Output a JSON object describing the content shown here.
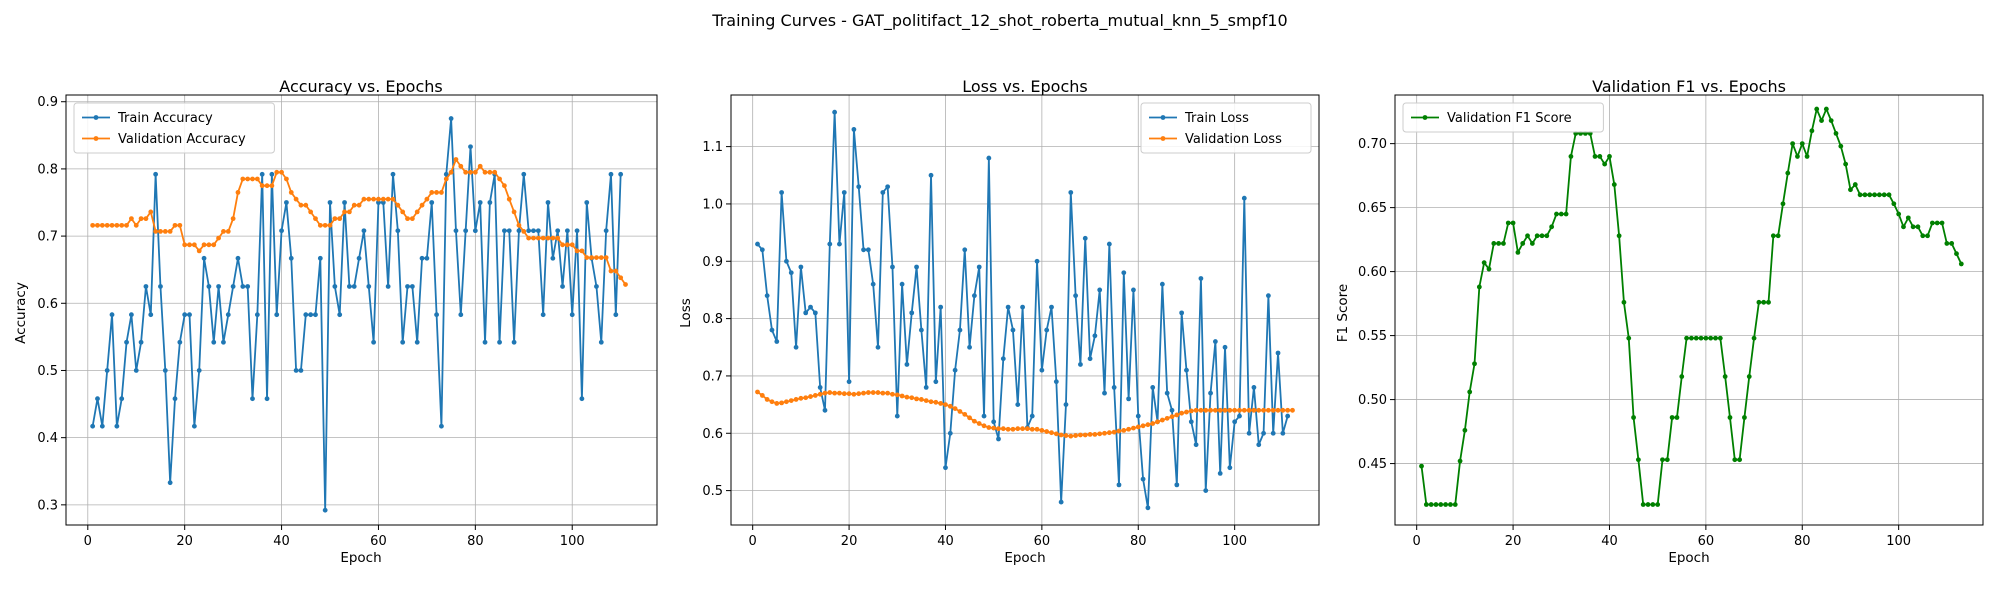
{
  "figure": {
    "title": "Training Curves - GAT_politifact_12_shot_roberta_mutual_knn_5_smpf10"
  },
  "colors": {
    "train": "#1f77b4",
    "validation": "#ff7f0e",
    "f1": "#008000",
    "grid": "#b0b0b0"
  },
  "chart_data": [
    {
      "type": "line",
      "title": "Accuracy vs. Epochs",
      "xlabel": "Epoch",
      "ylabel": "Accuracy",
      "xlim": [
        -4.5,
        117.5
      ],
      "ylim": [
        0.27,
        0.91
      ],
      "xticks": [
        0,
        20,
        40,
        60,
        80,
        100
      ],
      "yticks": [
        0.3,
        0.4,
        0.5,
        0.6,
        0.7,
        0.8,
        0.9
      ],
      "yticklabels": [
        "0.3",
        "0.4",
        "0.5",
        "0.6",
        "0.7",
        "0.8",
        "0.9"
      ],
      "grid": true,
      "legend": "upper left",
      "series": [
        {
          "name": "Train Accuracy",
          "color": "#1f77b4",
          "values": [
            0.417,
            0.458,
            0.417,
            0.5,
            0.583,
            0.417,
            0.458,
            0.542,
            0.583,
            0.5,
            0.542,
            0.625,
            0.583,
            0.792,
            0.625,
            0.5,
            0.333,
            0.458,
            0.542,
            0.583,
            0.583,
            0.417,
            0.5,
            0.667,
            0.625,
            0.542,
            0.625,
            0.542,
            0.583,
            0.625,
            0.667,
            0.625,
            0.625,
            0.458,
            0.583,
            0.792,
            0.458,
            0.792,
            0.583,
            0.708,
            0.75,
            0.667,
            0.5,
            0.5,
            0.583,
            0.583,
            0.583,
            0.667,
            0.292,
            0.75,
            0.625,
            0.583,
            0.75,
            0.625,
            0.625,
            0.667,
            0.708,
            0.625,
            0.542,
            0.75,
            0.75,
            0.625,
            0.792,
            0.708,
            0.542,
            0.625,
            0.625,
            0.542,
            0.667,
            0.667,
            0.75,
            0.583,
            0.417,
            0.792,
            0.875,
            0.708,
            0.583,
            0.708,
            0.833,
            0.708,
            0.75,
            0.542,
            0.75,
            0.792,
            0.542,
            0.708,
            0.708,
            0.542,
            0.708,
            0.792,
            0.708,
            0.708,
            0.708,
            0.583,
            0.75,
            0.667,
            0.708,
            0.625,
            0.708,
            0.583,
            0.708,
            0.458,
            0.75,
            0.667,
            0.625,
            0.542,
            0.708,
            0.792,
            0.583,
            0.792
          ]
        },
        {
          "name": "Validation Accuracy",
          "color": "#ff7f0e",
          "values": [
            0.716,
            0.716,
            0.716,
            0.716,
            0.716,
            0.716,
            0.716,
            0.716,
            0.726,
            0.716,
            0.726,
            0.726,
            0.736,
            0.707,
            0.707,
            0.707,
            0.707,
            0.716,
            0.716,
            0.687,
            0.687,
            0.687,
            0.678,
            0.687,
            0.687,
            0.687,
            0.697,
            0.707,
            0.707,
            0.726,
            0.765,
            0.785,
            0.785,
            0.785,
            0.785,
            0.775,
            0.775,
            0.775,
            0.795,
            0.795,
            0.785,
            0.765,
            0.755,
            0.746,
            0.746,
            0.736,
            0.726,
            0.716,
            0.716,
            0.716,
            0.726,
            0.726,
            0.736,
            0.736,
            0.746,
            0.746,
            0.755,
            0.755,
            0.755,
            0.755,
            0.755,
            0.755,
            0.755,
            0.746,
            0.736,
            0.726,
            0.726,
            0.736,
            0.746,
            0.755,
            0.765,
            0.765,
            0.765,
            0.785,
            0.795,
            0.814,
            0.804,
            0.795,
            0.795,
            0.795,
            0.804,
            0.795,
            0.795,
            0.795,
            0.785,
            0.775,
            0.755,
            0.736,
            0.716,
            0.707,
            0.697,
            0.697,
            0.697,
            0.697,
            0.697,
            0.697,
            0.697,
            0.687,
            0.687,
            0.687,
            0.678,
            0.678,
            0.668,
            0.668,
            0.668,
            0.668,
            0.668,
            0.648,
            0.648,
            0.638,
            0.628
          ]
        }
      ]
    },
    {
      "type": "line",
      "title": "Loss vs. Epochs",
      "xlabel": "Epoch",
      "ylabel": "Loss",
      "xlim": [
        -4.5,
        117.5
      ],
      "ylim": [
        0.44,
        1.19
      ],
      "xticks": [
        0,
        20,
        40,
        60,
        80,
        100
      ],
      "yticks": [
        0.5,
        0.6,
        0.7,
        0.8,
        0.9,
        1.0,
        1.1
      ],
      "yticklabels": [
        "0.5",
        "0.6",
        "0.7",
        "0.8",
        "0.9",
        "1.0",
        "1.1"
      ],
      "grid": true,
      "legend": "upper right",
      "series": [
        {
          "name": "Train Loss",
          "color": "#1f77b4",
          "values": [
            0.93,
            0.92,
            0.84,
            0.78,
            0.76,
            1.02,
            0.9,
            0.88,
            0.75,
            0.89,
            0.81,
            0.82,
            0.81,
            0.68,
            0.64,
            0.93,
            1.16,
            0.93,
            1.02,
            0.69,
            1.13,
            1.03,
            0.92,
            0.92,
            0.86,
            0.75,
            1.02,
            1.03,
            0.89,
            0.63,
            0.86,
            0.72,
            0.81,
            0.89,
            0.78,
            0.68,
            1.05,
            0.69,
            0.82,
            0.54,
            0.6,
            0.71,
            0.78,
            0.92,
            0.75,
            0.84,
            0.89,
            0.63,
            1.08,
            0.62,
            0.59,
            0.73,
            0.82,
            0.78,
            0.65,
            0.82,
            0.61,
            0.63,
            0.9,
            0.71,
            0.78,
            0.82,
            0.69,
            0.48,
            0.65,
            1.02,
            0.84,
            0.72,
            0.94,
            0.73,
            0.77,
            0.85,
            0.67,
            0.93,
            0.68,
            0.51,
            0.88,
            0.66,
            0.85,
            0.63,
            0.52,
            0.47,
            0.68,
            0.62,
            0.86,
            0.67,
            0.64,
            0.51,
            0.81,
            0.71,
            0.62,
            0.58,
            0.87,
            0.5,
            0.67,
            0.76,
            0.53,
            0.75,
            0.54,
            0.62,
            0.63,
            1.01,
            0.6,
            0.68,
            0.58,
            0.6,
            0.84,
            0.6,
            0.74,
            0.6,
            0.63
          ]
        },
        {
          "name": "Validation Loss",
          "color": "#ff7f0e",
          "values": [
            0.672,
            0.666,
            0.659,
            0.655,
            0.652,
            0.653,
            0.655,
            0.657,
            0.659,
            0.661,
            0.662,
            0.664,
            0.666,
            0.668,
            0.67,
            0.671,
            0.67,
            0.67,
            0.669,
            0.669,
            0.668,
            0.669,
            0.67,
            0.671,
            0.671,
            0.671,
            0.67,
            0.67,
            0.668,
            0.667,
            0.665,
            0.663,
            0.662,
            0.66,
            0.659,
            0.657,
            0.655,
            0.654,
            0.652,
            0.65,
            0.647,
            0.643,
            0.638,
            0.633,
            0.627,
            0.621,
            0.617,
            0.613,
            0.61,
            0.609,
            0.608,
            0.608,
            0.607,
            0.607,
            0.608,
            0.608,
            0.608,
            0.607,
            0.607,
            0.605,
            0.603,
            0.601,
            0.599,
            0.597,
            0.596,
            0.595,
            0.596,
            0.597,
            0.597,
            0.598,
            0.598,
            0.599,
            0.6,
            0.601,
            0.602,
            0.604,
            0.605,
            0.607,
            0.609,
            0.611,
            0.613,
            0.615,
            0.617,
            0.62,
            0.623,
            0.626,
            0.629,
            0.632,
            0.635,
            0.637,
            0.639,
            0.64,
            0.64,
            0.64,
            0.64,
            0.64,
            0.64,
            0.64,
            0.64,
            0.64,
            0.64,
            0.64,
            0.64,
            0.64,
            0.64,
            0.64,
            0.64,
            0.64,
            0.64,
            0.64,
            0.64,
            0.64
          ]
        }
      ]
    },
    {
      "type": "line",
      "title": "Validation F1 vs. Epochs",
      "xlabel": "Epoch",
      "ylabel": "F1 Score",
      "xlim": [
        -4.5,
        117.5
      ],
      "ylim": [
        0.402,
        0.738
      ],
      "xticks": [
        0,
        20,
        40,
        60,
        80,
        100
      ],
      "yticks": [
        0.45,
        0.5,
        0.55,
        0.6,
        0.65,
        0.7
      ],
      "yticklabels": [
        "0.45",
        "0.50",
        "0.55",
        "0.60",
        "0.65",
        "0.70"
      ],
      "grid": true,
      "legend": "upper left",
      "series": [
        {
          "name": "Validation F1 Score",
          "color": "#008000",
          "values": [
            0.448,
            0.418,
            0.418,
            0.418,
            0.418,
            0.418,
            0.418,
            0.418,
            0.452,
            0.476,
            0.506,
            0.528,
            0.588,
            0.607,
            0.602,
            0.622,
            0.622,
            0.622,
            0.638,
            0.638,
            0.615,
            0.622,
            0.628,
            0.622,
            0.628,
            0.628,
            0.628,
            0.635,
            0.645,
            0.645,
            0.645,
            0.69,
            0.708,
            0.708,
            0.708,
            0.708,
            0.69,
            0.69,
            0.684,
            0.69,
            0.668,
            0.628,
            0.576,
            0.548,
            0.486,
            0.453,
            0.418,
            0.418,
            0.418,
            0.418,
            0.453,
            0.453,
            0.486,
            0.486,
            0.518,
            0.548,
            0.548,
            0.548,
            0.548,
            0.548,
            0.548,
            0.548,
            0.548,
            0.518,
            0.486,
            0.453,
            0.453,
            0.486,
            0.518,
            0.548,
            0.576,
            0.576,
            0.576,
            0.628,
            0.628,
            0.653,
            0.677,
            0.7,
            0.69,
            0.7,
            0.69,
            0.71,
            0.727,
            0.718,
            0.727,
            0.718,
            0.708,
            0.698,
            0.684,
            0.664,
            0.668,
            0.66,
            0.66,
            0.66,
            0.66,
            0.66,
            0.66,
            0.66,
            0.653,
            0.645,
            0.635,
            0.642,
            0.635,
            0.635,
            0.628,
            0.628,
            0.638,
            0.638,
            0.638,
            0.622,
            0.622,
            0.614,
            0.606
          ]
        }
      ]
    }
  ]
}
